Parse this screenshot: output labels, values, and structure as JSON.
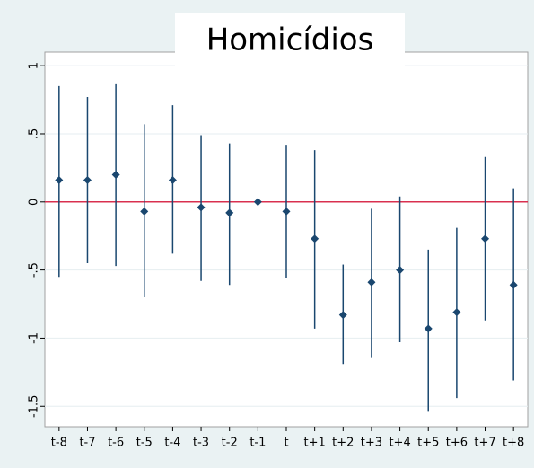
{
  "chart_data": {
    "type": "errorbar",
    "title": "Homicídios",
    "categories": [
      "t-8",
      "t-7",
      "t-6",
      "t-5",
      "t-4",
      "t-3",
      "t-2",
      "t-1",
      "t",
      "t+1",
      "t+2",
      "t+3",
      "t+4",
      "t+5",
      "t+6",
      "t+7",
      "t+8"
    ],
    "values": [
      0.16,
      0.16,
      0.2,
      -0.07,
      0.16,
      -0.04,
      -0.08,
      0,
      -0.07,
      -0.27,
      -0.83,
      -0.59,
      -0.5,
      -0.93,
      -0.81,
      -0.27,
      -0.61
    ],
    "ci_low": [
      -0.55,
      -0.45,
      -0.47,
      -0.7,
      -0.38,
      -0.58,
      -0.61,
      null,
      -0.56,
      -0.93,
      -1.19,
      -1.14,
      -1.03,
      -1.54,
      -1.44,
      -0.87,
      -1.31
    ],
    "ci_high": [
      0.85,
      0.77,
      0.87,
      0.57,
      0.71,
      0.49,
      0.43,
      null,
      0.42,
      0.38,
      -0.46,
      -0.05,
      0.04,
      -0.35,
      -0.19,
      0.33,
      0.1
    ],
    "color": "#1a476f",
    "ylim": [
      -1.65,
      1.1
    ],
    "yticks": [
      1,
      {
        "value": 0.5,
        "label": ".5"
      },
      0,
      {
        "value": -0.5,
        "label": "-.5"
      },
      -1,
      -1.5
    ],
    "grid": true,
    "reference_line": {
      "value": 0,
      "color": "#d9304f"
    }
  }
}
